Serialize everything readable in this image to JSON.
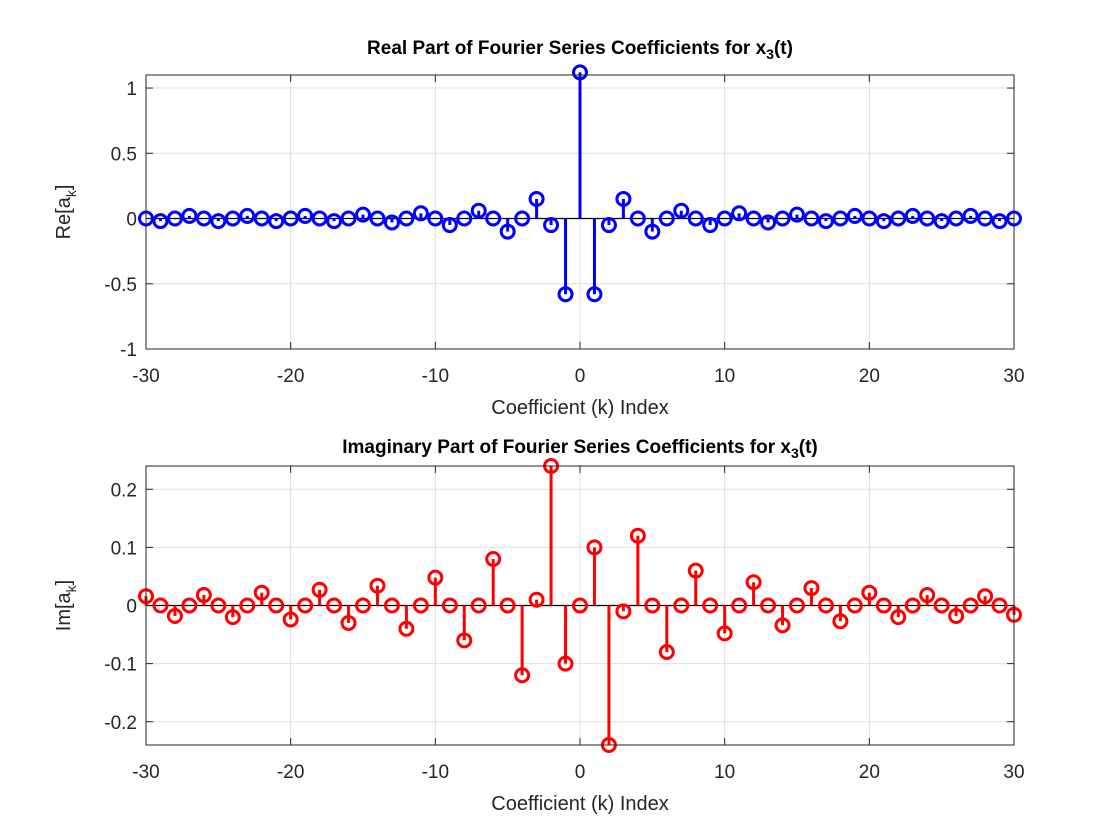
{
  "chart_data": [
    {
      "type": "stem",
      "title": "Real Part of Fourier Series Coefficients for x",
      "title_sub": "3",
      "title_suffix": "(t)",
      "xlabel": "Coefficient (k) Index",
      "ylabel_main": "Re[a",
      "ylabel_sub": "k",
      "ylabel_close": "]",
      "xlim": [
        -30,
        30
      ],
      "ylim": [
        -1,
        1.1
      ],
      "xticks": [
        -30,
        -20,
        -10,
        0,
        10,
        20,
        30
      ],
      "xtick_labels": [
        "-30",
        "-20",
        "-10",
        "0",
        "10",
        "20",
        "30"
      ],
      "yticks": [
        -1,
        -0.5,
        0,
        0.5,
        1
      ],
      "ytick_labels": [
        "-1",
        "-0.5",
        "0",
        "0.5",
        "1"
      ],
      "grid": true,
      "color": "#0000ff",
      "series": [
        {
          "x": [
            -30,
            -29,
            -28,
            -27,
            -26,
            -25,
            -24,
            -23,
            -22,
            -21,
            -20,
            -19,
            -18,
            -17,
            -16,
            -15,
            -14,
            -13,
            -12,
            -11,
            -10,
            -9,
            -8,
            -7,
            -6,
            -5,
            -4,
            -3,
            -2,
            -1,
            0,
            1,
            2,
            3,
            4,
            5,
            6,
            7,
            8,
            9,
            10,
            11,
            12,
            13,
            14,
            15,
            16,
            17,
            18,
            19,
            20,
            21,
            22,
            23,
            24,
            25,
            26,
            27,
            28,
            29,
            30
          ],
          "y": [
            0,
            -0.02,
            0,
            0.02,
            0,
            -0.02,
            0,
            0.02,
            0,
            -0.02,
            0,
            0.02,
            0,
            -0.02,
            0,
            0.03,
            0,
            -0.03,
            0,
            0.04,
            0,
            -0.05,
            0,
            0.06,
            0,
            -0.1,
            0,
            0.15,
            -0.05,
            -0.58,
            1.12,
            -0.58,
            -0.05,
            0.15,
            0,
            -0.1,
            0,
            0.06,
            0,
            -0.05,
            0,
            0.04,
            0,
            -0.03,
            0,
            0.03,
            0,
            -0.02,
            0,
            0.02,
            0,
            -0.02,
            0,
            0.02,
            0,
            -0.02,
            0,
            0.02,
            0,
            -0.02,
            0
          ]
        }
      ]
    },
    {
      "type": "stem",
      "title": "Imaginary Part of Fourier Series Coefficients for x",
      "title_sub": "3",
      "title_suffix": "(t)",
      "xlabel": "Coefficient (k) Index",
      "ylabel_main": "Im[a",
      "ylabel_sub": "k",
      "ylabel_close": "]",
      "xlim": [
        -30,
        30
      ],
      "ylim": [
        -0.24,
        0.24
      ],
      "xticks": [
        -30,
        -20,
        -10,
        0,
        10,
        20,
        30
      ],
      "xtick_labels": [
        "-30",
        "-20",
        "-10",
        "0",
        "10",
        "20",
        "30"
      ],
      "yticks": [
        -0.2,
        -0.1,
        0,
        0.1,
        0.2
      ],
      "ytick_labels": [
        "-0.2",
        "-0.1",
        "0",
        "0.1",
        "0.2"
      ],
      "grid": true,
      "color": "#ff0000",
      "series": [
        {
          "x": [
            -30,
            -29,
            -28,
            -27,
            -26,
            -25,
            -24,
            -23,
            -22,
            -21,
            -20,
            -19,
            -18,
            -17,
            -16,
            -15,
            -14,
            -13,
            -12,
            -11,
            -10,
            -9,
            -8,
            -7,
            -6,
            -5,
            -4,
            -3,
            -2,
            -1,
            0,
            1,
            2,
            3,
            4,
            5,
            6,
            7,
            8,
            9,
            10,
            11,
            12,
            13,
            14,
            15,
            16,
            17,
            18,
            19,
            20,
            21,
            22,
            23,
            24,
            25,
            26,
            27,
            28,
            29,
            30
          ],
          "y": [
            0.016,
            0,
            -0.018,
            0,
            0.018,
            0,
            -0.02,
            0,
            0.022,
            0,
            -0.024,
            0,
            0.027,
            0,
            -0.03,
            0,
            0.034,
            0,
            -0.04,
            0,
            0.048,
            0,
            -0.06,
            0,
            0.08,
            0,
            -0.12,
            0.01,
            0.24,
            -0.1,
            0,
            0.1,
            -0.24,
            -0.01,
            0.12,
            0,
            -0.08,
            0,
            0.06,
            0,
            -0.048,
            0,
            0.04,
            0,
            -0.034,
            0,
            0.03,
            0,
            -0.027,
            0,
            0.022,
            0,
            -0.02,
            0,
            0.018,
            0,
            -0.018,
            0,
            0.016,
            0,
            -0.016
          ]
        }
      ]
    }
  ]
}
